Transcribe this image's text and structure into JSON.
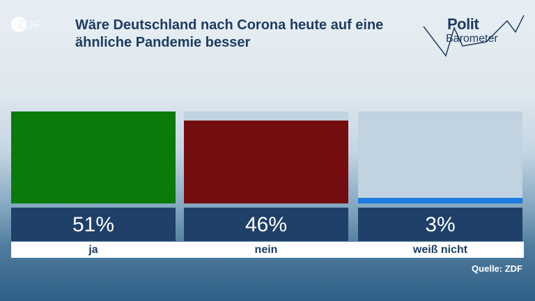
{
  "logo": {
    "text": "ZDF"
  },
  "title": "Wäre Deutschland nach Corona heute auf eine ähnliche Pandemie besser",
  "brand": {
    "word1": "Polit",
    "word2": "Barometer"
  },
  "source": "Quelle: ZDF",
  "chart_data": {
    "type": "bar",
    "categories": [
      "ja",
      "nein",
      "weiß nicht"
    ],
    "values": [
      51,
      46,
      3
    ],
    "value_labels": [
      "51%",
      "46%",
      "3%"
    ],
    "unit": "%",
    "ylim": [
      0,
      51
    ],
    "colors": [
      "#0a7a0a",
      "#730d0f",
      "#1e7be2"
    ],
    "grid": false,
    "legend": "none"
  }
}
